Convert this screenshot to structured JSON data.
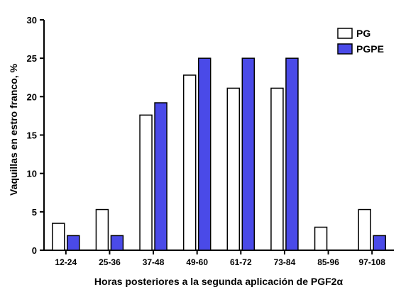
{
  "chart_data": {
    "type": "bar",
    "categories": [
      "12-24",
      "25-36",
      "37-48",
      "49-60",
      "61-72",
      "73-84",
      "85-96",
      "97-108"
    ],
    "series": [
      {
        "name": "PG",
        "values": [
          3.5,
          5.3,
          17.6,
          22.8,
          21.1,
          21.1,
          3.0,
          5.3
        ],
        "color": "#ffffff"
      },
      {
        "name": "PGPE",
        "values": [
          1.9,
          1.9,
          19.2,
          25.0,
          25.0,
          25.0,
          0,
          1.9
        ],
        "color": "#4a4ae8"
      }
    ],
    "ylabel": "Vaquillas en estro franco, %",
    "xlabel": "Horas posteriores a la segunda aplicación de PGF2α",
    "ylim": [
      0,
      30
    ],
    "yticks": [
      0,
      5,
      10,
      15,
      20,
      25,
      30
    ],
    "grid": false,
    "legend_position": "top-right"
  }
}
